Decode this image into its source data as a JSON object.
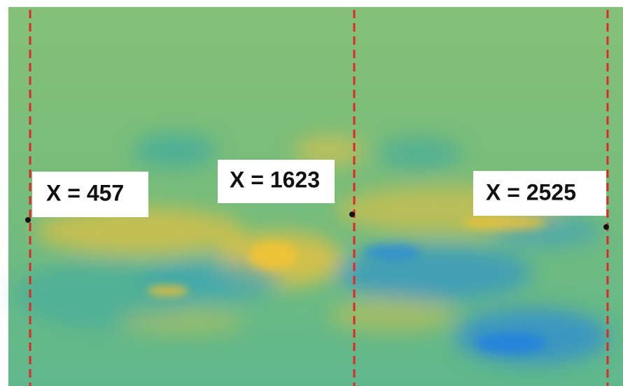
{
  "annotations": [
    {
      "label": "X = 457"
    },
    {
      "label": "X = 1623"
    },
    {
      "label": "X = 2525"
    }
  ]
}
